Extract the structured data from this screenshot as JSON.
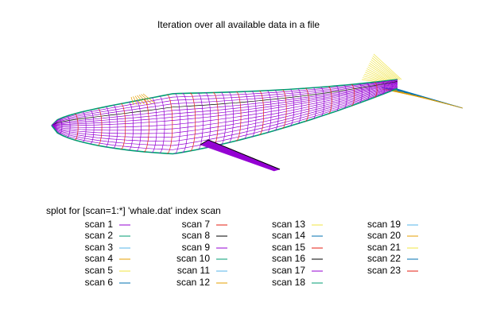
{
  "chart_data": {
    "type": "wireframe",
    "title": "Iteration over all available data in a file",
    "legend_title": "splot for [scan=1:*] 'whale.dat' index scan",
    "series": [
      {
        "name": "scan 1",
        "color": "#9400d3"
      },
      {
        "name": "scan 2",
        "color": "#009e73"
      },
      {
        "name": "scan 3",
        "color": "#56b4e9"
      },
      {
        "name": "scan 4",
        "color": "#e69f00"
      },
      {
        "name": "scan 5",
        "color": "#f0e442"
      },
      {
        "name": "scan 6",
        "color": "#0072b2"
      },
      {
        "name": "scan 7",
        "color": "#e51e10"
      },
      {
        "name": "scan 8",
        "color": "#000000"
      },
      {
        "name": "scan 9",
        "color": "#9400d3"
      },
      {
        "name": "scan 10",
        "color": "#009e73"
      },
      {
        "name": "scan 11",
        "color": "#56b4e9"
      },
      {
        "name": "scan 12",
        "color": "#e69f00"
      },
      {
        "name": "scan 13",
        "color": "#f0e442"
      },
      {
        "name": "scan 14",
        "color": "#0072b2"
      },
      {
        "name": "scan 15",
        "color": "#e51e10"
      },
      {
        "name": "scan 16",
        "color": "#000000"
      },
      {
        "name": "scan 17",
        "color": "#9400d3"
      },
      {
        "name": "scan 18",
        "color": "#009e73"
      },
      {
        "name": "scan 19",
        "color": "#56b4e9"
      },
      {
        "name": "scan 20",
        "color": "#e69f00"
      },
      {
        "name": "scan 21",
        "color": "#f0e442"
      },
      {
        "name": "scan 22",
        "color": "#0072b2"
      },
      {
        "name": "scan 23",
        "color": "#e51e10"
      }
    ]
  }
}
